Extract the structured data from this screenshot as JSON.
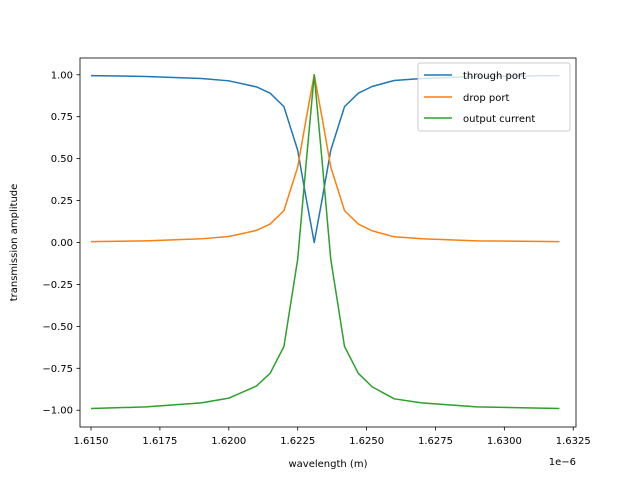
{
  "chart_data": {
    "type": "line",
    "xlabel": "wavelength (m)",
    "ylabel": "transmission amplitude",
    "x_offset_label": "1e−6",
    "x_ticks": [
      "1.6150",
      "1.6175",
      "1.6200",
      "1.6225",
      "1.6250",
      "1.6275",
      "1.6300",
      "1.6325"
    ],
    "y_ticks": [
      "−1.00",
      "−0.75",
      "−0.50",
      "−0.25",
      "0.00",
      "0.25",
      "0.50",
      "0.75",
      "1.00"
    ],
    "xlim": [
      1.6146e-06,
      1.6326e-06
    ],
    "ylim": [
      -1.1,
      1.1
    ],
    "legend_position": "top-right",
    "grid": false,
    "series": [
      {
        "name": "through port",
        "color": "#1f77b4",
        "x": [
          1.615e-06,
          1.617e-06,
          1.619e-06,
          1.62e-06,
          1.621e-06,
          1.6215e-06,
          1.622e-06,
          1.6225e-06,
          1.6228e-06,
          1.6231e-06,
          1.6234e-06,
          1.6237e-06,
          1.6242e-06,
          1.6247e-06,
          1.6252e-06,
          1.626e-06,
          1.627e-06,
          1.629e-06,
          1.632e-06
        ],
        "values": [
          0.995,
          0.99,
          0.978,
          0.964,
          0.928,
          0.89,
          0.81,
          0.55,
          0.27,
          0.0,
          0.27,
          0.55,
          0.81,
          0.89,
          0.93,
          0.966,
          0.978,
          0.99,
          0.995
        ]
      },
      {
        "name": "drop port",
        "color": "#ff7f0e",
        "x": [
          1.615e-06,
          1.617e-06,
          1.619e-06,
          1.62e-06,
          1.621e-06,
          1.6215e-06,
          1.622e-06,
          1.6225e-06,
          1.6228e-06,
          1.6231e-06,
          1.6234e-06,
          1.6237e-06,
          1.6242e-06,
          1.6247e-06,
          1.6252e-06,
          1.626e-06,
          1.627e-06,
          1.629e-06,
          1.632e-06
        ],
        "values": [
          0.005,
          0.01,
          0.022,
          0.036,
          0.072,
          0.11,
          0.19,
          0.45,
          0.73,
          1.0,
          0.73,
          0.45,
          0.19,
          0.11,
          0.07,
          0.034,
          0.022,
          0.01,
          0.005
        ]
      },
      {
        "name": "output current",
        "color": "#2ca02c",
        "x": [
          1.615e-06,
          1.617e-06,
          1.619e-06,
          1.62e-06,
          1.621e-06,
          1.6215e-06,
          1.622e-06,
          1.6225e-06,
          1.6228e-06,
          1.6231e-06,
          1.6234e-06,
          1.6237e-06,
          1.6242e-06,
          1.6247e-06,
          1.6252e-06,
          1.626e-06,
          1.627e-06,
          1.629e-06,
          1.632e-06
        ],
        "values": [
          -0.99,
          -0.98,
          -0.956,
          -0.928,
          -0.856,
          -0.78,
          -0.62,
          -0.1,
          0.46,
          1.0,
          0.46,
          -0.1,
          -0.62,
          -0.78,
          -0.86,
          -0.932,
          -0.956,
          -0.98,
          -0.99
        ]
      }
    ]
  }
}
